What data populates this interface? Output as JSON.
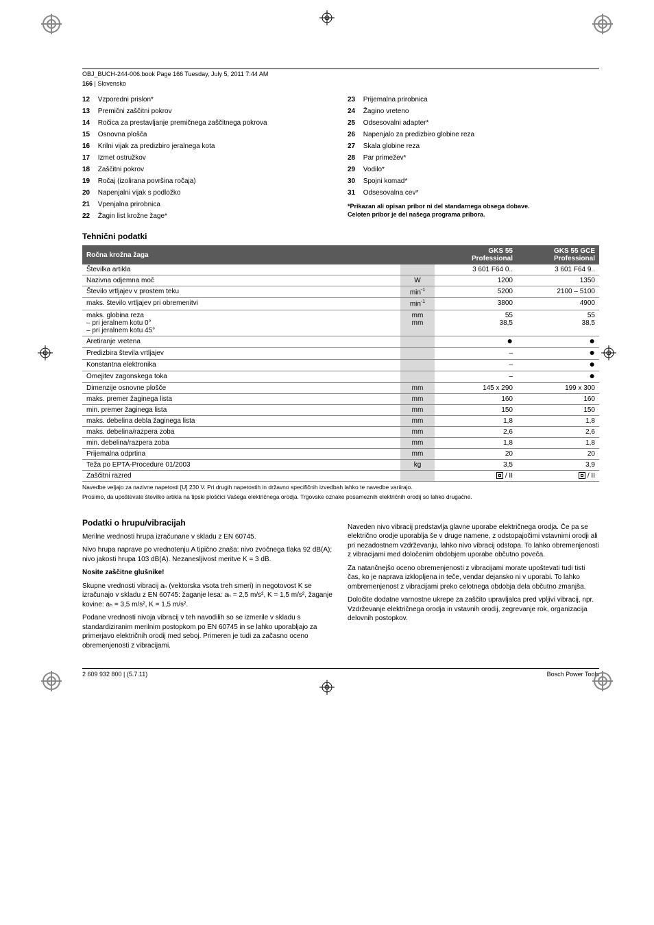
{
  "header_line": "OBJ_BUCH-244-006.book  Page 166  Tuesday, July 5, 2011  7:44 AM",
  "page_number": "166",
  "page_lang": "Slovensko",
  "parts_left": [
    {
      "n": "12",
      "t": "Vzporedni prislon*"
    },
    {
      "n": "13",
      "t": "Premični zaščitni pokrov"
    },
    {
      "n": "14",
      "t": "Ročica za prestavljanje premičnega zaščitnega pokrova"
    },
    {
      "n": "15",
      "t": "Osnovna plošča"
    },
    {
      "n": "16",
      "t": "Krilni vijak za predizbiro jeralnega kota"
    },
    {
      "n": "17",
      "t": "Izmet ostružkov"
    },
    {
      "n": "18",
      "t": "Zaščitni pokrov"
    },
    {
      "n": "19",
      "t": "Ročaj (izolirana površina ročaja)"
    },
    {
      "n": "20",
      "t": "Napenjalni vijak s podložko"
    },
    {
      "n": "21",
      "t": "Vpenjalna prirobnica"
    },
    {
      "n": "22",
      "t": "Žagin list krožne žage*"
    }
  ],
  "parts_right": [
    {
      "n": "23",
      "t": "Prijemalna prirobnica"
    },
    {
      "n": "24",
      "t": "Žagino vreteno"
    },
    {
      "n": "25",
      "t": "Odsesovalni adapter*"
    },
    {
      "n": "26",
      "t": "Napenjalo za predizbiro globine reza"
    },
    {
      "n": "27",
      "t": "Skala globine reza"
    },
    {
      "n": "28",
      "t": "Par primežev*"
    },
    {
      "n": "29",
      "t": "Vodilo*"
    },
    {
      "n": "30",
      "t": "Spojni komad*"
    },
    {
      "n": "31",
      "t": "Odsesovalna cev*"
    }
  ],
  "parts_note1": "*Prikazan ali opisan pribor ni del standarnega obsega dobave.",
  "parts_note2": "Celoten pribor je del našega programa pribora.",
  "tech_heading": "Tehnični podatki",
  "table": {
    "head_label": "Ročna krožna žaga",
    "head_c1a": "GKS 55",
    "head_c1b": "Professional",
    "head_c2a": "GKS 55 GCE",
    "head_c2b": "Professional",
    "rows": [
      {
        "l": "Številka artikla",
        "u": "",
        "v1": "3 601 F64 0..",
        "v2": "3 601 F64 9.."
      },
      {
        "l": "Nazivna odjemna moč",
        "u": "W",
        "v1": "1200",
        "v2": "1350"
      },
      {
        "l": "Število vrtljajev v prostem teku",
        "u": "min-1",
        "v1": "5200",
        "v2": "2100 – 5100"
      },
      {
        "l": "maks. število vrtljajev pri obremenitvi",
        "u": "min-1",
        "v1": "3800",
        "v2": "4900"
      },
      {
        "l": "maks. globina reza\n– pri jeralnem kotu 0°\n– pri jeralnem kotu 45°",
        "u": "mm\nmm",
        "v1": "55\n38,5",
        "v2": "55\n38,5",
        "multi": true
      },
      {
        "l": "Aretiranje vretena",
        "u": "",
        "v1": "●",
        "v2": "●",
        "dot": true
      },
      {
        "l": "Predizbira števila vrtljajev",
        "u": "",
        "v1": "–",
        "v2": "●",
        "dot": true
      },
      {
        "l": "Konstantna elektronika",
        "u": "",
        "v1": "–",
        "v2": "●",
        "dot": true
      },
      {
        "l": "Omejitev zagonskega toka",
        "u": "",
        "v1": "–",
        "v2": "●",
        "dot": true
      },
      {
        "l": "Dimenzije osnovne plošče",
        "u": "mm",
        "v1": "145 x 290",
        "v2": "199 x 300"
      },
      {
        "l": "maks. premer žaginega lista",
        "u": "mm",
        "v1": "160",
        "v2": "160"
      },
      {
        "l": "min. premer žaginega lista",
        "u": "mm",
        "v1": "150",
        "v2": "150"
      },
      {
        "l": "maks. debelina debla žaginega lista",
        "u": "mm",
        "v1": "1,8",
        "v2": "1,8"
      },
      {
        "l": "maks. debelina/razpera zoba",
        "u": "mm",
        "v1": "2,6",
        "v2": "2,6"
      },
      {
        "l": "min. debelina/razpera zoba",
        "u": "mm",
        "v1": "1,8",
        "v2": "1,8"
      },
      {
        "l": "Prijemalna odprtina",
        "u": "mm",
        "v1": "20",
        "v2": "20"
      },
      {
        "l": "Teža po EPTA-Procedure 01/2003",
        "u": "kg",
        "v1": "3,5",
        "v2": "3,9"
      },
      {
        "l": "Zaščitni razred",
        "u": "",
        "v1": "CLASS2",
        "v2": "CLASS2",
        "class2": true
      }
    ],
    "note1": "Navedbe veljajo za nazivne napetosti [U] 230 V. Pri drugih napetostih in državno specifičnih izvedbah lahko te navedbe variirajo.",
    "note2": "Prosimo, da upoštevate številko artikla na tipski ploščici Vašega električnega orodja. Trgovske oznake posameznih električnih orodij so lahko drugačne."
  },
  "vib_heading": "Podatki o hrupu/vibracijah",
  "vib_left": {
    "p1": "Merilne vrednosti hrupa izračunane v skladu z EN 60745.",
    "p2": "Nivo hrupa naprave po vrednotenju A tipično znaša: nivo zvočnega tlaka 92 dB(A); nivo jakosti hrupa 103 dB(A). Nezanesljivost meritve K = 3 dB.",
    "p3b": "Nosite zaščitne glušnike!",
    "p4": "Skupne vrednosti vibracij aₕ (vektorska vsota treh smeri) in negotovost K se izračunajo v skladu z EN 60745: žaganje lesa: aₕ = 2,5 m/s², K = 1,5 m/s², žaganje kovine: aₕ = 3,5 m/s², K = 1,5 m/s².",
    "p5": "Podane vrednosti nivoja vibracij v teh navodilih so se izmerile v skladu s standardiziranim merilnim postopkom po EN 60745 in se lahko uporabljajo za primerjavo električnih orodij med seboj. Primeren je tudi za začasno oceno obremenjenosti z vibracijami."
  },
  "vib_right": {
    "p1": "Naveden nivo vibracij predstavlja glavne uporabe električnega orodja. Če pa se električno orodje uporablja še v druge namene, z odstopajočimi vstavnimi orodji ali pri nezadostnem vzdrževanju, lahko nivo vibracij odstopa. To lahko obremenjenosti z vibracijami med določenim obdobjem uporabe občutno poveča.",
    "p2": "Za natančnejšo oceno obremenjenosti z vibracijami morate upoštevati tudi tisti čas, ko je naprava izklopljena in teče, vendar dejansko ni v uporabi. To lahko ombremenjenost z vibracijami preko celotnega obdobja dela občutno zmanjša.",
    "p3": "Določite dodatne varnostne ukrepe za zaščito upravljalca pred vpljivi vibracij, npr. Vzdrževanje električnega orodja in vstavnih orodij, zegrevanje rok, organizacija delovnih postopkov."
  },
  "footer_left": "2 609 932 800 | (5.7.11)",
  "footer_right": "Bosch Power Tools"
}
